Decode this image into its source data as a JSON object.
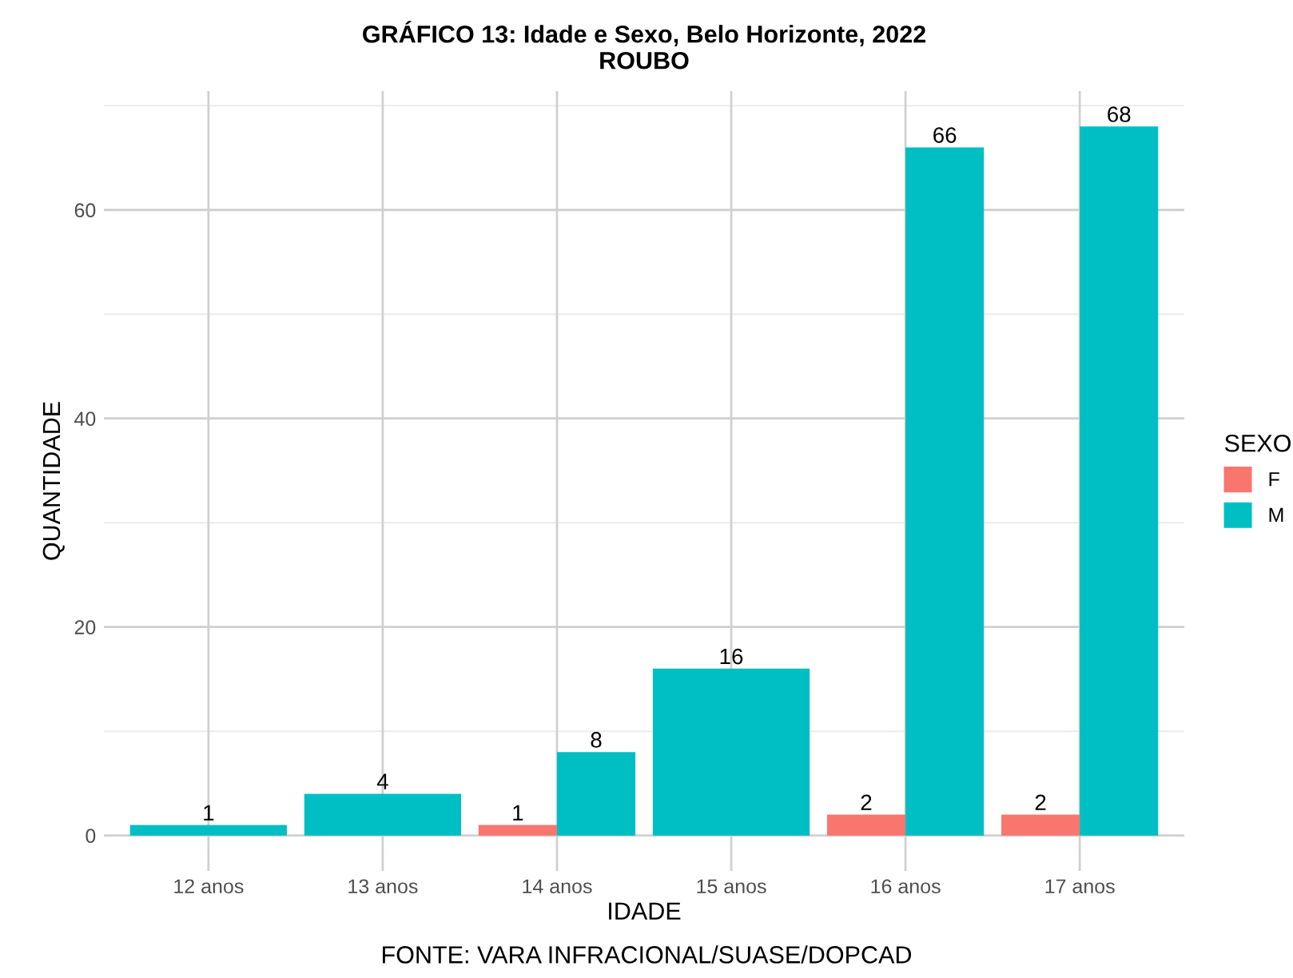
{
  "chart_data": {
    "type": "bar",
    "title": "GRÁFICO 13: Idade e Sexo, Belo Horizonte, 2022\nROUBO",
    "xlabel": "IDADE",
    "ylabel": "QUANTIDADE",
    "legend_title": "SEXO",
    "categories": [
      "12 anos",
      "13 anos",
      "14 anos",
      "15 anos",
      "16 anos",
      "17 anos"
    ],
    "series": [
      {
        "name": "F",
        "color": "#f8766d",
        "values": [
          null,
          null,
          1,
          null,
          2,
          2
        ]
      },
      {
        "name": "M",
        "color": "#00bfc4",
        "values": [
          1,
          4,
          8,
          16,
          66,
          68
        ]
      }
    ],
    "ylim": [
      -3.4,
      71.4
    ],
    "yticks": [
      0,
      20,
      40,
      60
    ],
    "grid": true,
    "legend": "right",
    "data_labels": true,
    "annotations": [
      "FONTE: VARA INFRACIONAL/SUASE/DOPCAD"
    ]
  }
}
